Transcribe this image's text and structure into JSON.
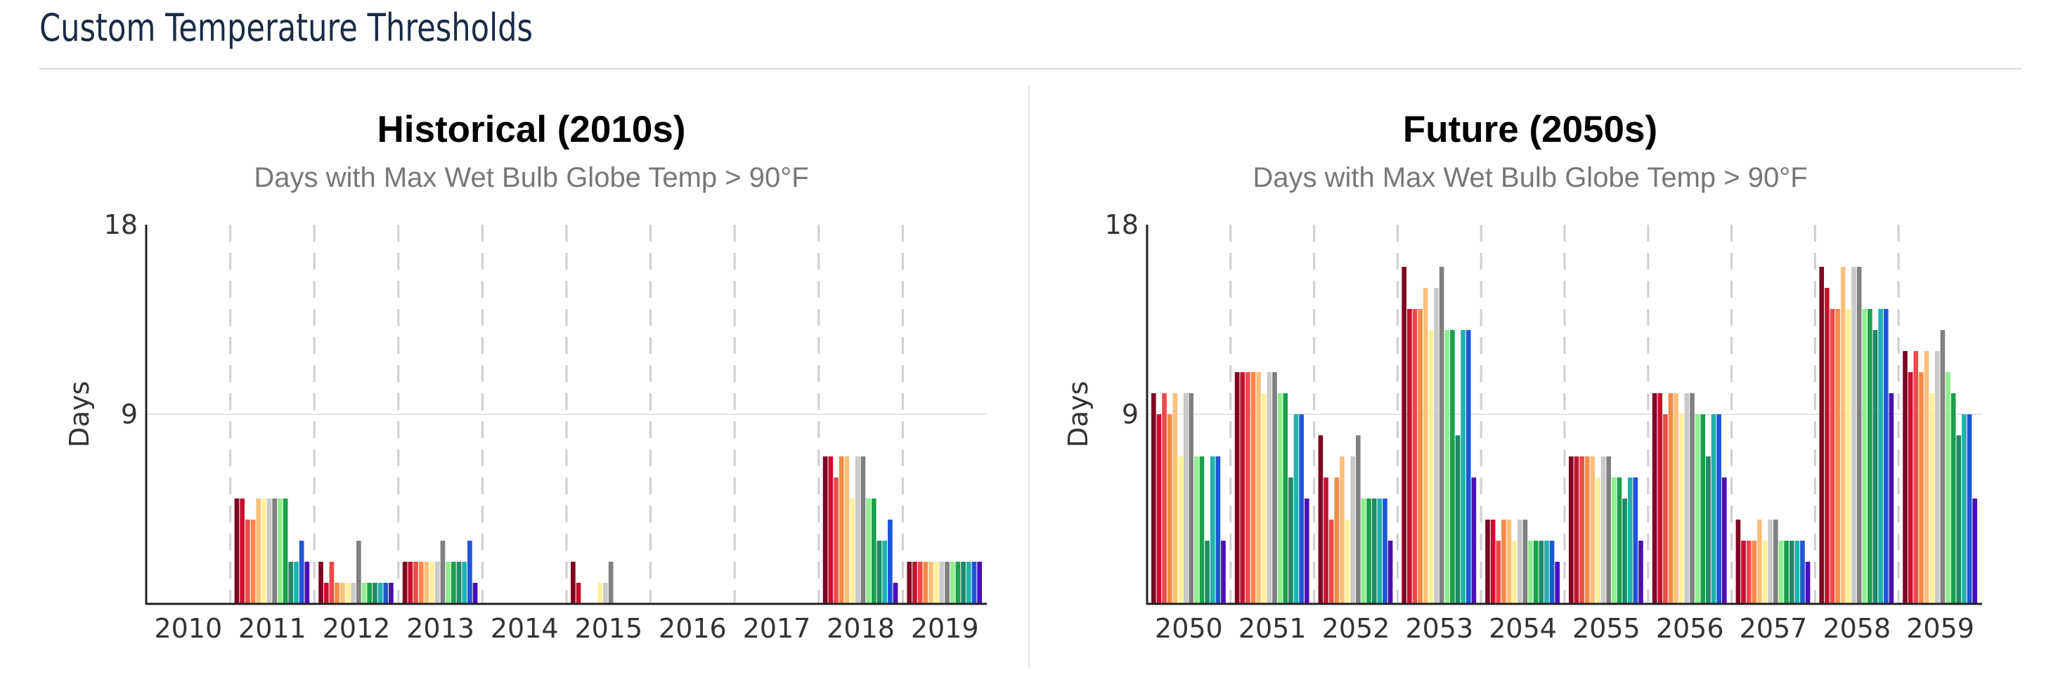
{
  "page": {
    "title": "Custom Temperature Thresholds"
  },
  "colors": {
    "series": [
      "#7f0523",
      "#c8102e",
      "#ef4a4a",
      "#f58a4a",
      "#fbc07a",
      "#fff09a",
      "#c9c9c9",
      "#808080",
      "#90ee90",
      "#1aa04a",
      "#1e8a66",
      "#20b2aa",
      "#1e56d8",
      "#4b0fb4"
    ]
  },
  "chart_data": [
    {
      "type": "bar",
      "title": "Historical (2010s)",
      "subtitle": "Days with Max Wet Bulb Globe Temp > 90°F",
      "xlabel": "",
      "ylabel": "Days",
      "ylim": [
        0,
        18
      ],
      "yticks": [
        18,
        9
      ],
      "grid": true,
      "categories": [
        "2010",
        "2011",
        "2012",
        "2013",
        "2014",
        "2015",
        "2016",
        "2017",
        "2018",
        "2019"
      ],
      "series": [
        {
          "values": [
            0,
            5,
            2,
            2,
            0,
            2,
            0,
            0,
            7,
            2
          ]
        },
        {
          "values": [
            0,
            5,
            1,
            2,
            0,
            1,
            0,
            0,
            7,
            2
          ]
        },
        {
          "values": [
            0,
            4,
            2,
            2,
            0,
            0,
            0,
            0,
            6,
            2
          ]
        },
        {
          "values": [
            0,
            4,
            1,
            2,
            0,
            0,
            0,
            0,
            7,
            2
          ]
        },
        {
          "values": [
            0,
            5,
            1,
            2,
            0,
            0,
            0,
            0,
            7,
            2
          ]
        },
        {
          "values": [
            0,
            5,
            1,
            2,
            0,
            1,
            0,
            0,
            5,
            2
          ]
        },
        {
          "values": [
            0,
            5,
            1,
            2,
            0,
            1,
            0,
            0,
            7,
            2
          ]
        },
        {
          "values": [
            0,
            5,
            3,
            3,
            0,
            2,
            0,
            0,
            7,
            2
          ]
        },
        {
          "values": [
            0,
            5,
            1,
            2,
            0,
            0,
            0,
            0,
            5,
            2
          ]
        },
        {
          "values": [
            0,
            5,
            1,
            2,
            0,
            0,
            0,
            0,
            5,
            2
          ]
        },
        {
          "values": [
            0,
            2,
            1,
            2,
            0,
            0,
            0,
            0,
            3,
            2
          ]
        },
        {
          "values": [
            0,
            2,
            1,
            2,
            0,
            0,
            0,
            0,
            3,
            2
          ]
        },
        {
          "values": [
            0,
            3,
            1,
            3,
            0,
            0,
            0,
            0,
            4,
            2
          ]
        },
        {
          "values": [
            0,
            2,
            1,
            1,
            0,
            0,
            0,
            0,
            1,
            2
          ]
        }
      ]
    },
    {
      "type": "bar",
      "title": "Future (2050s)",
      "subtitle": "Days with Max Wet Bulb Globe Temp > 90°F",
      "xlabel": "",
      "ylabel": "Days",
      "ylim": [
        0,
        18
      ],
      "yticks": [
        18,
        9
      ],
      "grid": true,
      "categories": [
        "2050",
        "2051",
        "2052",
        "2053",
        "2054",
        "2055",
        "2056",
        "2057",
        "2058",
        "2059"
      ],
      "series": [
        {
          "values": [
            10,
            11,
            8,
            16,
            4,
            7,
            10,
            4,
            16,
            12
          ]
        },
        {
          "values": [
            9,
            11,
            6,
            14,
            4,
            7,
            10,
            3,
            15,
            11
          ]
        },
        {
          "values": [
            10,
            11,
            4,
            14,
            3,
            7,
            9,
            3,
            14,
            12
          ]
        },
        {
          "values": [
            9,
            11,
            6,
            14,
            4,
            7,
            10,
            3,
            14,
            11
          ]
        },
        {
          "values": [
            10,
            11,
            7,
            15,
            4,
            7,
            10,
            4,
            16,
            12
          ]
        },
        {
          "values": [
            7,
            10,
            4,
            13,
            3,
            6,
            9,
            3,
            14,
            10
          ]
        },
        {
          "values": [
            10,
            11,
            7,
            15,
            4,
            7,
            10,
            4,
            16,
            12
          ]
        },
        {
          "values": [
            10,
            11,
            8,
            16,
            4,
            7,
            10,
            4,
            16,
            13
          ]
        },
        {
          "values": [
            7,
            10,
            5,
            13,
            3,
            6,
            9,
            3,
            14,
            11
          ]
        },
        {
          "values": [
            7,
            10,
            5,
            13,
            3,
            6,
            9,
            3,
            14,
            10
          ]
        },
        {
          "values": [
            3,
            6,
            5,
            8,
            3,
            5,
            7,
            3,
            13,
            8
          ]
        },
        {
          "values": [
            7,
            9,
            5,
            13,
            3,
            6,
            9,
            3,
            14,
            9
          ]
        },
        {
          "values": [
            7,
            9,
            5,
            13,
            3,
            6,
            9,
            3,
            14,
            9
          ]
        },
        {
          "values": [
            3,
            5,
            3,
            6,
            2,
            3,
            6,
            2,
            10,
            5
          ]
        }
      ]
    }
  ]
}
